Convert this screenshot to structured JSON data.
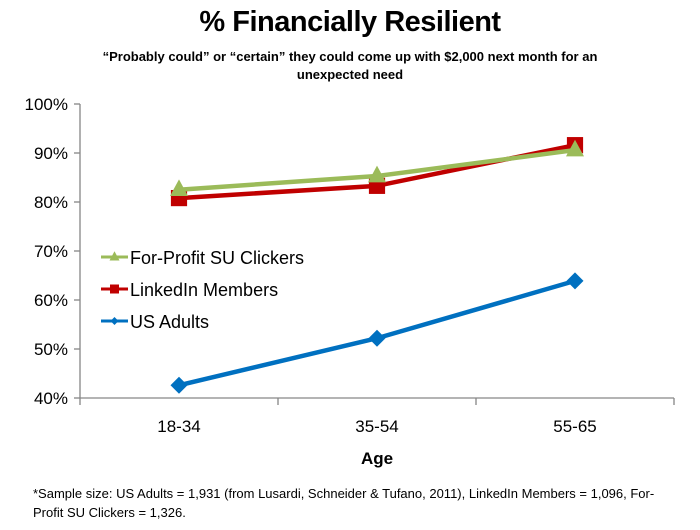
{
  "chart_data": {
    "type": "line",
    "title": "% Financially Resilient",
    "subtitle": "“Probably could” or “certain” they could come up with $2,000  next month for an unexpected need",
    "xlabel": "Age",
    "ylabel": "",
    "categories": [
      "18-34",
      "35-54",
      "55-65"
    ],
    "ylim": [
      40,
      100
    ],
    "yticks": [
      "40%",
      "50%",
      "60%",
      "70%",
      "80%",
      "90%",
      "100%"
    ],
    "ytick_values": [
      40,
      50,
      60,
      70,
      80,
      90,
      100
    ],
    "grid": false,
    "legend_position": "center-left",
    "series": [
      {
        "name": "For-Profit SU Clickers",
        "color": "#9BBB59",
        "marker": "triangle",
        "values": [
          82.5,
          85.3,
          90.6
        ]
      },
      {
        "name": "LinkedIn Members",
        "color": "#C00000",
        "marker": "square",
        "values": [
          80.8,
          83.3,
          91.6
        ]
      },
      {
        "name": "US Adults",
        "color": "#0070C0",
        "marker": "diamond",
        "values": [
          42.6,
          52.2,
          63.9
        ]
      }
    ],
    "footnote": "*Sample size: US Adults = 1,931 (from Lusardi, Schneider & Tufano, 2011), LinkedIn Members = 1,096, For-Profit SU Clickers = 1,326."
  }
}
